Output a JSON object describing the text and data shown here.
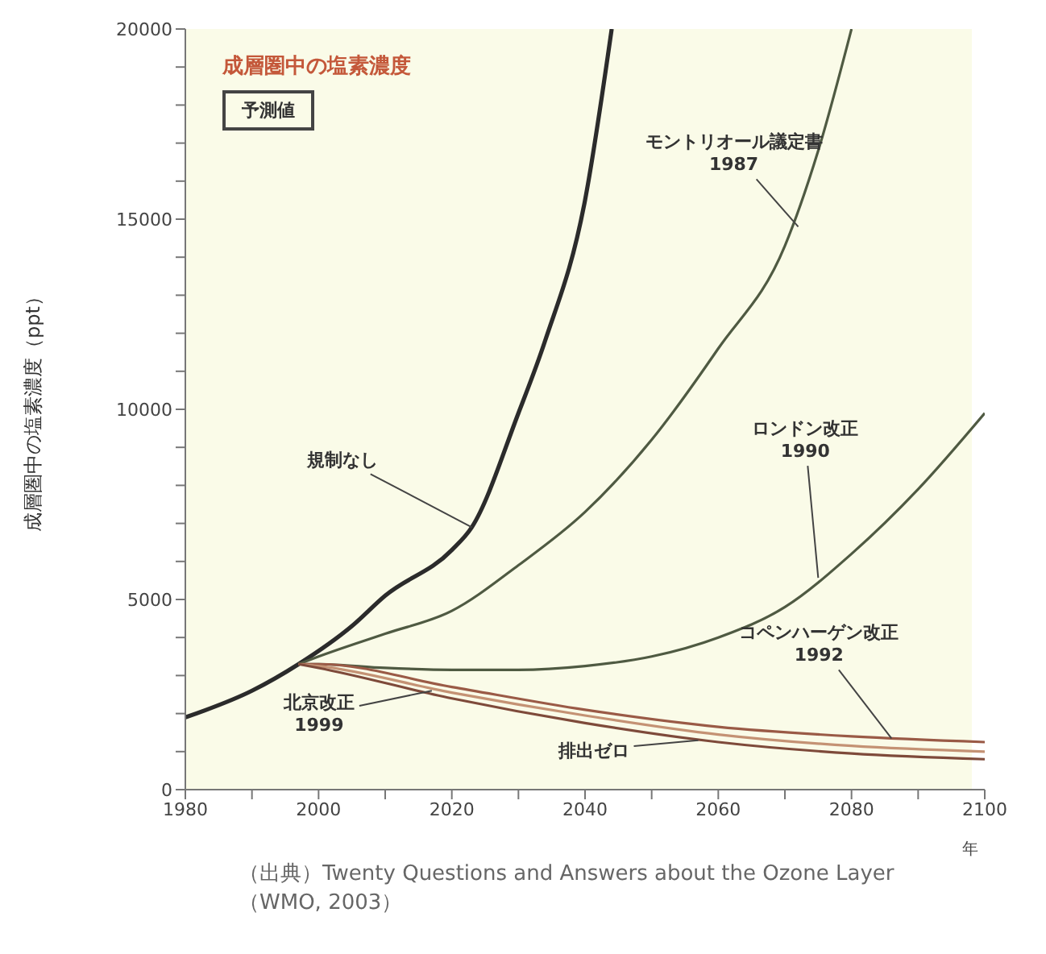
{
  "chart_data": {
    "type": "line",
    "title": "成層圏中の塩素濃度",
    "ylabel": "成層圏中の塩素濃度（ppt）",
    "xlabel": "年",
    "xlim": [
      1980,
      2100
    ],
    "xticks": [
      1980,
      {
        "value": 1990,
        "label": null
      },
      2000,
      {
        "value": 2010,
        "label": null
      },
      2020,
      {
        "value": 2030,
        "label": null
      },
      2040,
      {
        "value": 2050,
        "label": null
      },
      2060,
      {
        "value": 2070,
        "label": null
      },
      2080,
      {
        "value": 2090,
        "label": null
      },
      2100
    ],
    "ylim": [
      0,
      20000
    ],
    "yticks": [
      0,
      {
        "value": 1000,
        "label": null
      },
      {
        "value": 2000,
        "label": null
      },
      {
        "value": 3000,
        "label": null
      },
      {
        "value": 4000,
        "label": null
      },
      5000,
      {
        "value": 6000,
        "label": null
      },
      {
        "value": 7000,
        "label": null
      },
      {
        "value": 8000,
        "label": null
      },
      {
        "value": 9000,
        "label": null
      },
      10000,
      {
        "value": 11000,
        "label": null
      },
      {
        "value": 12000,
        "label": null
      },
      {
        "value": 13000,
        "label": null
      },
      {
        "value": 14000,
        "label": null
      },
      15000,
      {
        "value": 16000,
        "label": null
      },
      {
        "value": 17000,
        "label": null
      },
      {
        "value": 18000,
        "label": null
      },
      {
        "value": 19000,
        "label": null
      },
      20000
    ],
    "series": [
      {
        "color": "#2b2b2b",
        "x": [
          1980,
          1990,
          1997,
          2005,
          2010,
          2020,
          2023,
          2030,
          2034,
          2040,
          2044
        ],
        "values": [
          1900,
          2600,
          3300,
          4300,
          5100,
          6300,
          6900,
          9900,
          11800,
          15500,
          20000
        ]
      },
      {
        "color": "#4f5a42",
        "x": [
          1997,
          2000,
          2010,
          2020,
          2030,
          2040,
          2050,
          2060,
          2070,
          2075,
          2080
        ],
        "values": [
          3300,
          3500,
          4100,
          4700,
          5900,
          7300,
          9200,
          11600,
          14300,
          16800,
          20000
        ]
      },
      {
        "color": "#4f5a42",
        "x": [
          1997,
          2000,
          2010,
          2020,
          2030,
          2040,
          2050,
          2060,
          2070,
          2080,
          2090,
          2100
        ],
        "values": [
          3300,
          3300,
          3200,
          3150,
          3150,
          3250,
          3500,
          4000,
          4800,
          6200,
          7900,
          9900
        ]
      },
      {
        "color": "#9a5a46",
        "x": [
          1997,
          2000,
          2020,
          2040,
          2060,
          2080,
          2100
        ],
        "values": [
          3300,
          3300,
          2700,
          2100,
          1650,
          1400,
          1250
        ]
      },
      {
        "color": "#c49274",
        "x": [
          1997,
          2000,
          2020,
          2040,
          2060,
          2080,
          2100
        ],
        "values": [
          3300,
          3250,
          2550,
          1950,
          1450,
          1150,
          1000
        ]
      },
      {
        "color": "#7e4a3a",
        "x": [
          1997,
          2000,
          2020,
          2040,
          2060,
          2080,
          2100
        ],
        "values": [
          3300,
          3200,
          2400,
          1750,
          1250,
          950,
          800
        ]
      }
    ],
    "marker": "none",
    "line_style": "solid",
    "annotations": [
      "予測値",
      {
        "text": "規制なし",
        "x": 2023,
        "y": 6900
      },
      {
        "text": "モントリオール議定書\n1987",
        "x": 2072,
        "y": 14800
      },
      {
        "text": "ロンドン改正\n1990",
        "x": 2075,
        "y": 5570
      },
      {
        "text": "コペンハーゲン改正\n1992",
        "x": 2086,
        "y": 1350
      },
      {
        "text": "北京改正\n1999",
        "x": 2017,
        "y": 2600
      },
      {
        "text": "排出ゼロ",
        "x": 2057,
        "y": 1300
      },
      "（出典）Twenty Questions and Answers about the Ozone Layer\n（WMO, 2003）"
    ]
  }
}
